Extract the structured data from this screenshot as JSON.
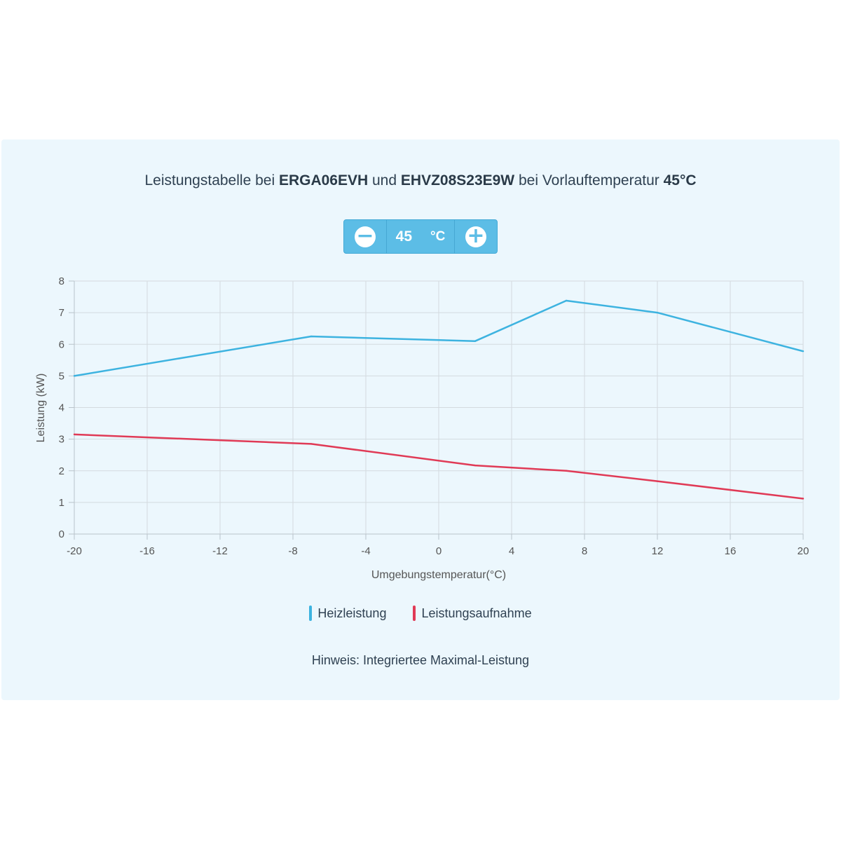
{
  "title": {
    "prefix": "Leistungstabelle bei ",
    "model_outdoor": "ERGA06EVH",
    "mid": " und ",
    "model_indoor": "EHVZ08S23E9W",
    "suffix": " bei Vorlauftemperatur ",
    "temp": "45°C"
  },
  "stepper": {
    "minus_symbol": "−",
    "value": "45",
    "unit": "°C",
    "plus_symbol": "+"
  },
  "colors": {
    "heating": "#3db3e0",
    "power": "#e03a56",
    "grid": "#d3dadf",
    "axis_text": "#555555",
    "accent": "#5cbde6"
  },
  "note": "Hinweis: Integriertee Maximal-Leistung",
  "chart_data": {
    "type": "line",
    "xlabel": "Umgebungstemperatur(°C)",
    "ylabel": "Leistung (kW)",
    "xlim": [
      -20,
      20
    ],
    "ylim": [
      0,
      8
    ],
    "xticks": [
      -20,
      -16,
      -12,
      -8,
      -4,
      0,
      4,
      8,
      12,
      16,
      20
    ],
    "yticks": [
      0,
      1,
      2,
      3,
      4,
      5,
      6,
      7,
      8
    ],
    "grid": true,
    "legend_position": "bottom",
    "series": [
      {
        "name": "Heizleistung",
        "color": "#3db3e0",
        "x": [
          -20,
          -7,
          2,
          7,
          12,
          20
        ],
        "y": [
          5.0,
          6.25,
          6.1,
          7.38,
          7.0,
          5.78
        ]
      },
      {
        "name": "Leistungsaufnahme",
        "color": "#e03a56",
        "x": [
          -20,
          -7,
          2,
          7,
          12,
          20
        ],
        "y": [
          3.15,
          2.85,
          2.17,
          2.0,
          1.67,
          1.12
        ]
      }
    ]
  }
}
